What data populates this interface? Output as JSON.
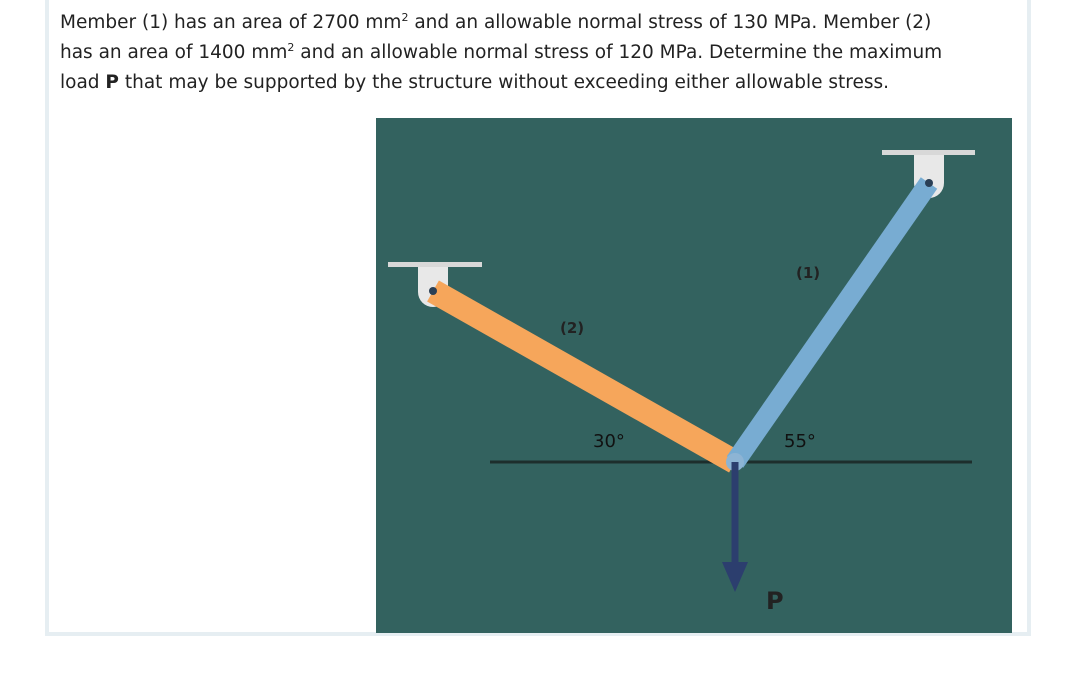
{
  "problem": {
    "line1a": "Member (1) has an area of 2700 mm",
    "line1sup": "2",
    "line1b": " and an allowable normal stress of 130 MPa. Member (2)",
    "line2a": "has an area of 1400 mm",
    "line2sup": "2",
    "line2b": " and an allowable normal stress of 120 MPa. Determine the maximum",
    "line3a": "load ",
    "line3bold": "P",
    "line3b": " that may be supported by the structure without exceeding either allowable stress."
  },
  "diagram": {
    "member1_label": "(1)",
    "member2_label": "(2)",
    "angle2": "30°",
    "angle1": "55°",
    "load_label": "P"
  }
}
